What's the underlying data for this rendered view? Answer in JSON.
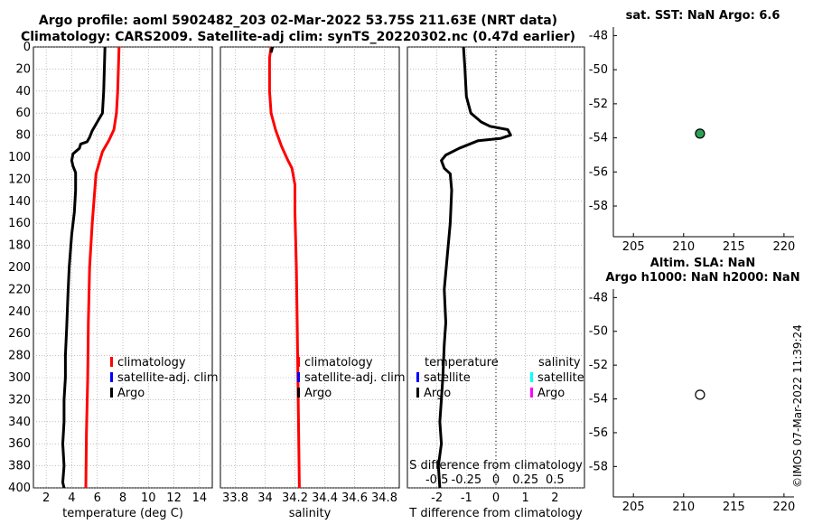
{
  "titles": {
    "line1": "Argo profile: aoml 5902482_203 02-Mar-2022 53.75S 211.63E (NRT data)",
    "line2": "Climatology: CARS2009. Satellite-adj clim: synTS_20220302.nc (0.47d earlier)",
    "sst": "sat. SST: NaN Argo: 6.6",
    "alt1": "Altim. SLA: NaN",
    "alt2": "Argo h1000: NaN h2000: NaN",
    "stamp": "©IMOS 07-Mar-2022 11:39:24"
  },
  "colors": {
    "climatology": "#ff0000",
    "satellite": "#0000ff",
    "argo": "#000000",
    "sat_salinity": "#00ffff",
    "argo_salinity": "#ff00ff",
    "marker": "#2ca05a"
  },
  "chart_data": [
    {
      "type": "line",
      "name": "temperature",
      "xlabel": "temperature (deg C)",
      "ylabel": "",
      "xlim": [
        1,
        15
      ],
      "ylim": [
        400,
        0
      ],
      "xticks": [
        2,
        4,
        6,
        8,
        10,
        12,
        14
      ],
      "yticks": [
        0,
        20,
        40,
        60,
        80,
        100,
        120,
        140,
        160,
        180,
        200,
        220,
        240,
        260,
        280,
        300,
        320,
        340,
        360,
        380,
        400
      ],
      "legend": [
        "climatology",
        "satellite-adj. clim",
        "Argo"
      ],
      "series": [
        {
          "name": "climatology",
          "color": "#ff0000",
          "points": [
            [
              7.7,
              0
            ],
            [
              7.6,
              40
            ],
            [
              7.5,
              60
            ],
            [
              7.3,
              75
            ],
            [
              6.9,
              85
            ],
            [
              6.4,
              95
            ],
            [
              5.9,
              115
            ],
            [
              5.6,
              160
            ],
            [
              5.4,
              200
            ],
            [
              5.3,
              250
            ],
            [
              5.25,
              300
            ],
            [
              5.15,
              350
            ],
            [
              5.1,
              400
            ]
          ]
        },
        {
          "name": "Argo",
          "color": "#000000",
          "points": [
            [
              6.6,
              0
            ],
            [
              6.5,
              40
            ],
            [
              6.4,
              60
            ],
            [
              5.9,
              70
            ],
            [
              5.6,
              76
            ],
            [
              5.4,
              82
            ],
            [
              5.2,
              86
            ],
            [
              4.7,
              88
            ],
            [
              4.6,
              92
            ],
            [
              4.1,
              97
            ],
            [
              4.0,
              103
            ],
            [
              4.1,
              108
            ],
            [
              4.3,
              114
            ],
            [
              4.3,
              130
            ],
            [
              4.2,
              150
            ],
            [
              4.0,
              170
            ],
            [
              3.9,
              185
            ],
            [
              3.8,
              200
            ],
            [
              3.7,
              225
            ],
            [
              3.6,
              255
            ],
            [
              3.5,
              280
            ],
            [
              3.5,
              300
            ],
            [
              3.4,
              320
            ],
            [
              3.4,
              340
            ],
            [
              3.3,
              360
            ],
            [
              3.4,
              380
            ],
            [
              3.3,
              395
            ],
            [
              3.4,
              400
            ]
          ]
        }
      ]
    },
    {
      "type": "line",
      "name": "salinity",
      "xlabel": "salinity",
      "ylabel": "",
      "xlim": [
        33.7,
        34.9
      ],
      "ylim": [
        400,
        0
      ],
      "xticks": [
        33.8,
        34,
        34.2,
        34.4,
        34.6,
        34.8
      ],
      "xticklabels": [
        "33.8",
        "34",
        "34.2",
        "34.4",
        "34.6",
        "34.8"
      ],
      "legend": [
        "climatology",
        "satellite-adj. clim",
        "Argo"
      ],
      "series": [
        {
          "name": "climatology",
          "color": "#ff0000",
          "points": [
            [
              34.04,
              0
            ],
            [
              34.03,
              10
            ],
            [
              34.03,
              40
            ],
            [
              34.04,
              60
            ],
            [
              34.07,
              75
            ],
            [
              34.11,
              90
            ],
            [
              34.15,
              102
            ],
            [
              34.18,
              110
            ],
            [
              34.2,
              125
            ],
            [
              34.2,
              150
            ],
            [
              34.21,
              200
            ],
            [
              34.215,
              250
            ],
            [
              34.22,
              300
            ],
            [
              34.225,
              350
            ],
            [
              34.23,
              400
            ]
          ]
        },
        {
          "name": "Argo",
          "color": "#000000",
          "points": [
            [
              34.05,
              0
            ],
            [
              34.04,
              5
            ]
          ]
        }
      ]
    },
    {
      "type": "line",
      "name": "difference",
      "xlabel": "T difference from climatology",
      "xlabel_top": "S difference from climatology",
      "xlim": [
        -3,
        3
      ],
      "ylim": [
        400,
        0
      ],
      "xticks": [
        -2,
        -1,
        0,
        1,
        2
      ],
      "top_ticks": [
        "-0.5",
        "-0.25",
        "0",
        "0.25",
        "0.5"
      ],
      "legend_left_title": "temperature",
      "legend_right_title": "salinity",
      "legend_left": [
        "satellite",
        "Argo"
      ],
      "legend_right": [
        "satellite",
        "Argo"
      ],
      "series": [
        {
          "name": "T difference Argo",
          "color": "#000000",
          "points": [
            [
              -1.1,
              0
            ],
            [
              -1.05,
              20
            ],
            [
              -1.0,
              45
            ],
            [
              -0.85,
              60
            ],
            [
              -0.5,
              68
            ],
            [
              -0.2,
              72
            ],
            [
              0.4,
              75
            ],
            [
              0.5,
              80
            ],
            [
              0.15,
              83
            ],
            [
              -0.6,
              85
            ],
            [
              -1.25,
              92
            ],
            [
              -1.7,
              98
            ],
            [
              -1.85,
              103
            ],
            [
              -1.75,
              110
            ],
            [
              -1.55,
              115
            ],
            [
              -1.5,
              130
            ],
            [
              -1.55,
              160
            ],
            [
              -1.65,
              190
            ],
            [
              -1.75,
              220
            ],
            [
              -1.7,
              250
            ],
            [
              -1.75,
              270
            ],
            [
              -1.8,
              300
            ],
            [
              -1.85,
              320
            ],
            [
              -1.9,
              340
            ],
            [
              -1.85,
              360
            ],
            [
              -1.95,
              380
            ],
            [
              -1.9,
              400
            ]
          ]
        }
      ]
    },
    {
      "type": "scatter",
      "name": "sst-location",
      "title": "sat. SST: NaN Argo: 6.6",
      "xlim": [
        203,
        221
      ],
      "ylim": [
        -59.8,
        -47.5
      ],
      "xticks": [
        205,
        210,
        215,
        220
      ],
      "yticks": [
        -48,
        -50,
        -52,
        -54,
        -56,
        -58
      ],
      "points": [
        [
          211.63,
          -53.75
        ]
      ]
    },
    {
      "type": "scatter",
      "name": "altimetry-location",
      "title": "Altim. SLA: NaN / Argo h1000: NaN h2000: NaN",
      "xlim": [
        203,
        221
      ],
      "ylim": [
        -59.8,
        -47.5
      ],
      "xticks": [
        205,
        210,
        215,
        220
      ],
      "yticks": [
        -48,
        -50,
        -52,
        -54,
        -56,
        -58
      ],
      "points": [
        [
          211.63,
          -53.75
        ]
      ]
    }
  ]
}
